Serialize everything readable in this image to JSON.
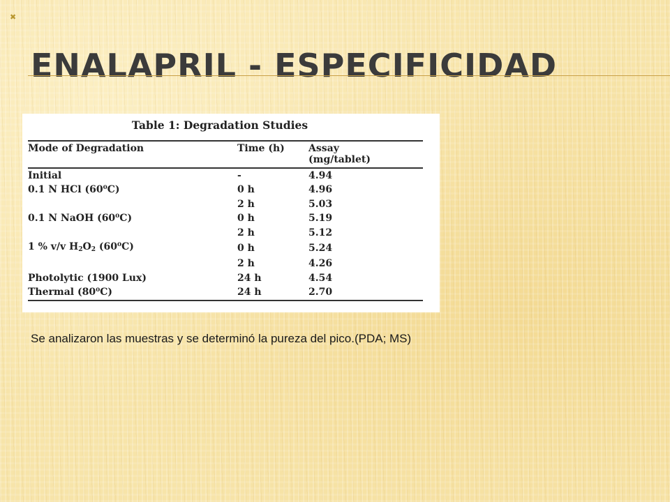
{
  "slide": {
    "bullet_glyph": "✖",
    "title": "ENALAPRIL - ESPECIFICIDAD",
    "caption": "Se analizaron las muestras y se determinó la pureza del pico.(PDA; MS)"
  },
  "table": {
    "caption": "Table 1: Degradation Studies",
    "headers": {
      "mode": "Mode of Degradation",
      "time": "Time (h)",
      "assay_line1": "Assay",
      "assay_line2": "(mg/tablet)"
    },
    "rows": [
      {
        "mode": "Initial",
        "time": "-",
        "assay": "4.94"
      },
      {
        "mode": "0.1 N HCl (60⁰C)",
        "time": "0 h",
        "assay": "4.96"
      },
      {
        "mode": "",
        "time": "2 h",
        "assay": "5.03"
      },
      {
        "mode": "0.1 N NaOH (60⁰C)",
        "time": "0 h",
        "assay": "5.19"
      },
      {
        "mode": "",
        "time": "2 h",
        "assay": "5.12"
      },
      {
        "mode_parts": {
          "pre": "1 % v/v H",
          "sub1": "2",
          "mid": "O",
          "sub2": "2",
          "post": " (60⁰C)"
        },
        "time": "0 h",
        "assay": "5.24"
      },
      {
        "mode": "",
        "time": "2 h",
        "assay": "4.26"
      },
      {
        "mode": "Photolytic (1900 Lux)",
        "time": "24 h",
        "assay": "4.54"
      },
      {
        "mode": "Thermal (80⁰C)",
        "time": "24 h",
        "assay": "2.70"
      }
    ]
  }
}
